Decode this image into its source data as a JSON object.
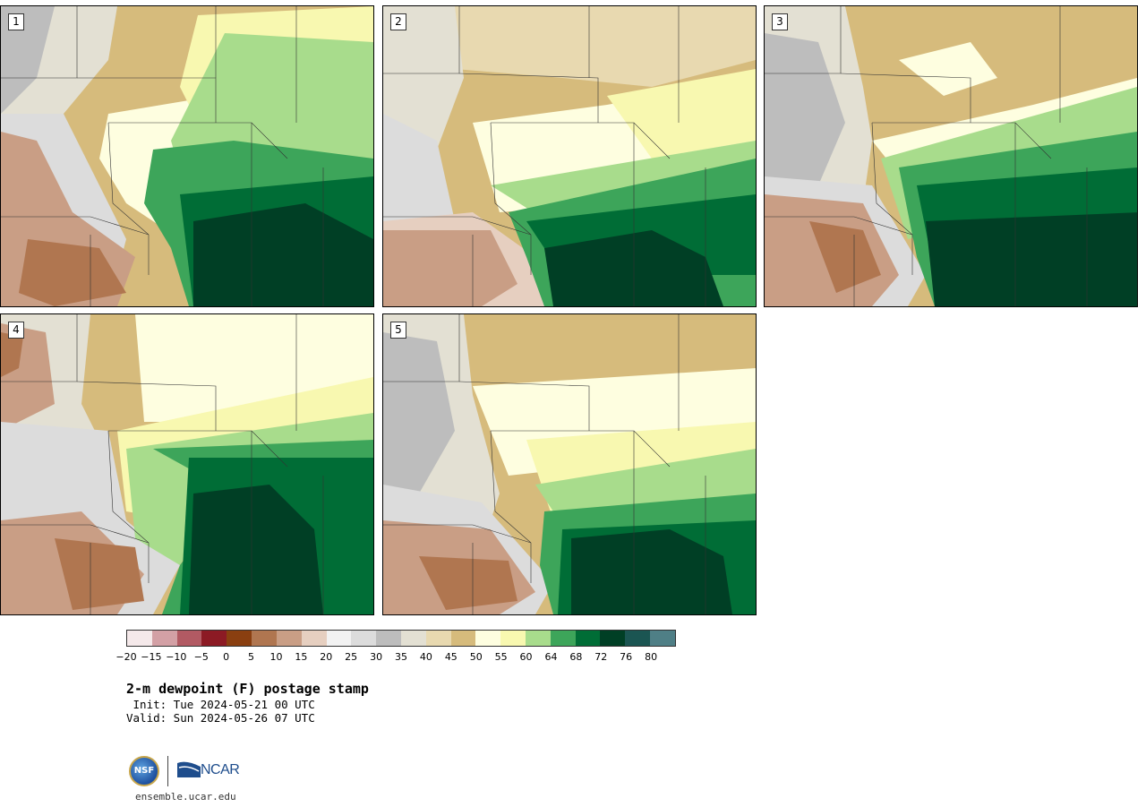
{
  "panels": [
    {
      "label": "1"
    },
    {
      "label": "2"
    },
    {
      "label": "3"
    },
    {
      "label": "4"
    },
    {
      "label": "5"
    }
  ],
  "colorbar": {
    "colors": [
      "#f5e9ea",
      "#d3a0a5",
      "#b25a63",
      "#8c1a24",
      "#8a3f10",
      "#b07650",
      "#c99e85",
      "#e6cfc0",
      "#f2f2f2",
      "#dcdcdc",
      "#bdbdbd",
      "#e3e0d3",
      "#e8d9b0",
      "#d6bb7c",
      "#fefee0",
      "#f8f8b0",
      "#a8dc8c",
      "#3da55a",
      "#006d36",
      "#003f25",
      "#1b5552",
      "#4f7f86"
    ],
    "ticks": [
      "−20",
      "−15",
      "−10",
      "−5",
      "0",
      "5",
      "10",
      "15",
      "20",
      "25",
      "30",
      "35",
      "40",
      "45",
      "50",
      "55",
      "60",
      "64",
      "68",
      "72",
      "76",
      "80"
    ]
  },
  "title": "2-m dewpoint (F) postage stamp",
  "init_line": " Init: Tue 2024-05-21 00 UTC",
  "valid_line": "Valid: Sun 2024-05-26 07 UTC",
  "logos": {
    "nsf": "NSF",
    "ncar": "NCAR"
  },
  "site": "ensemble.ucar.edu"
}
